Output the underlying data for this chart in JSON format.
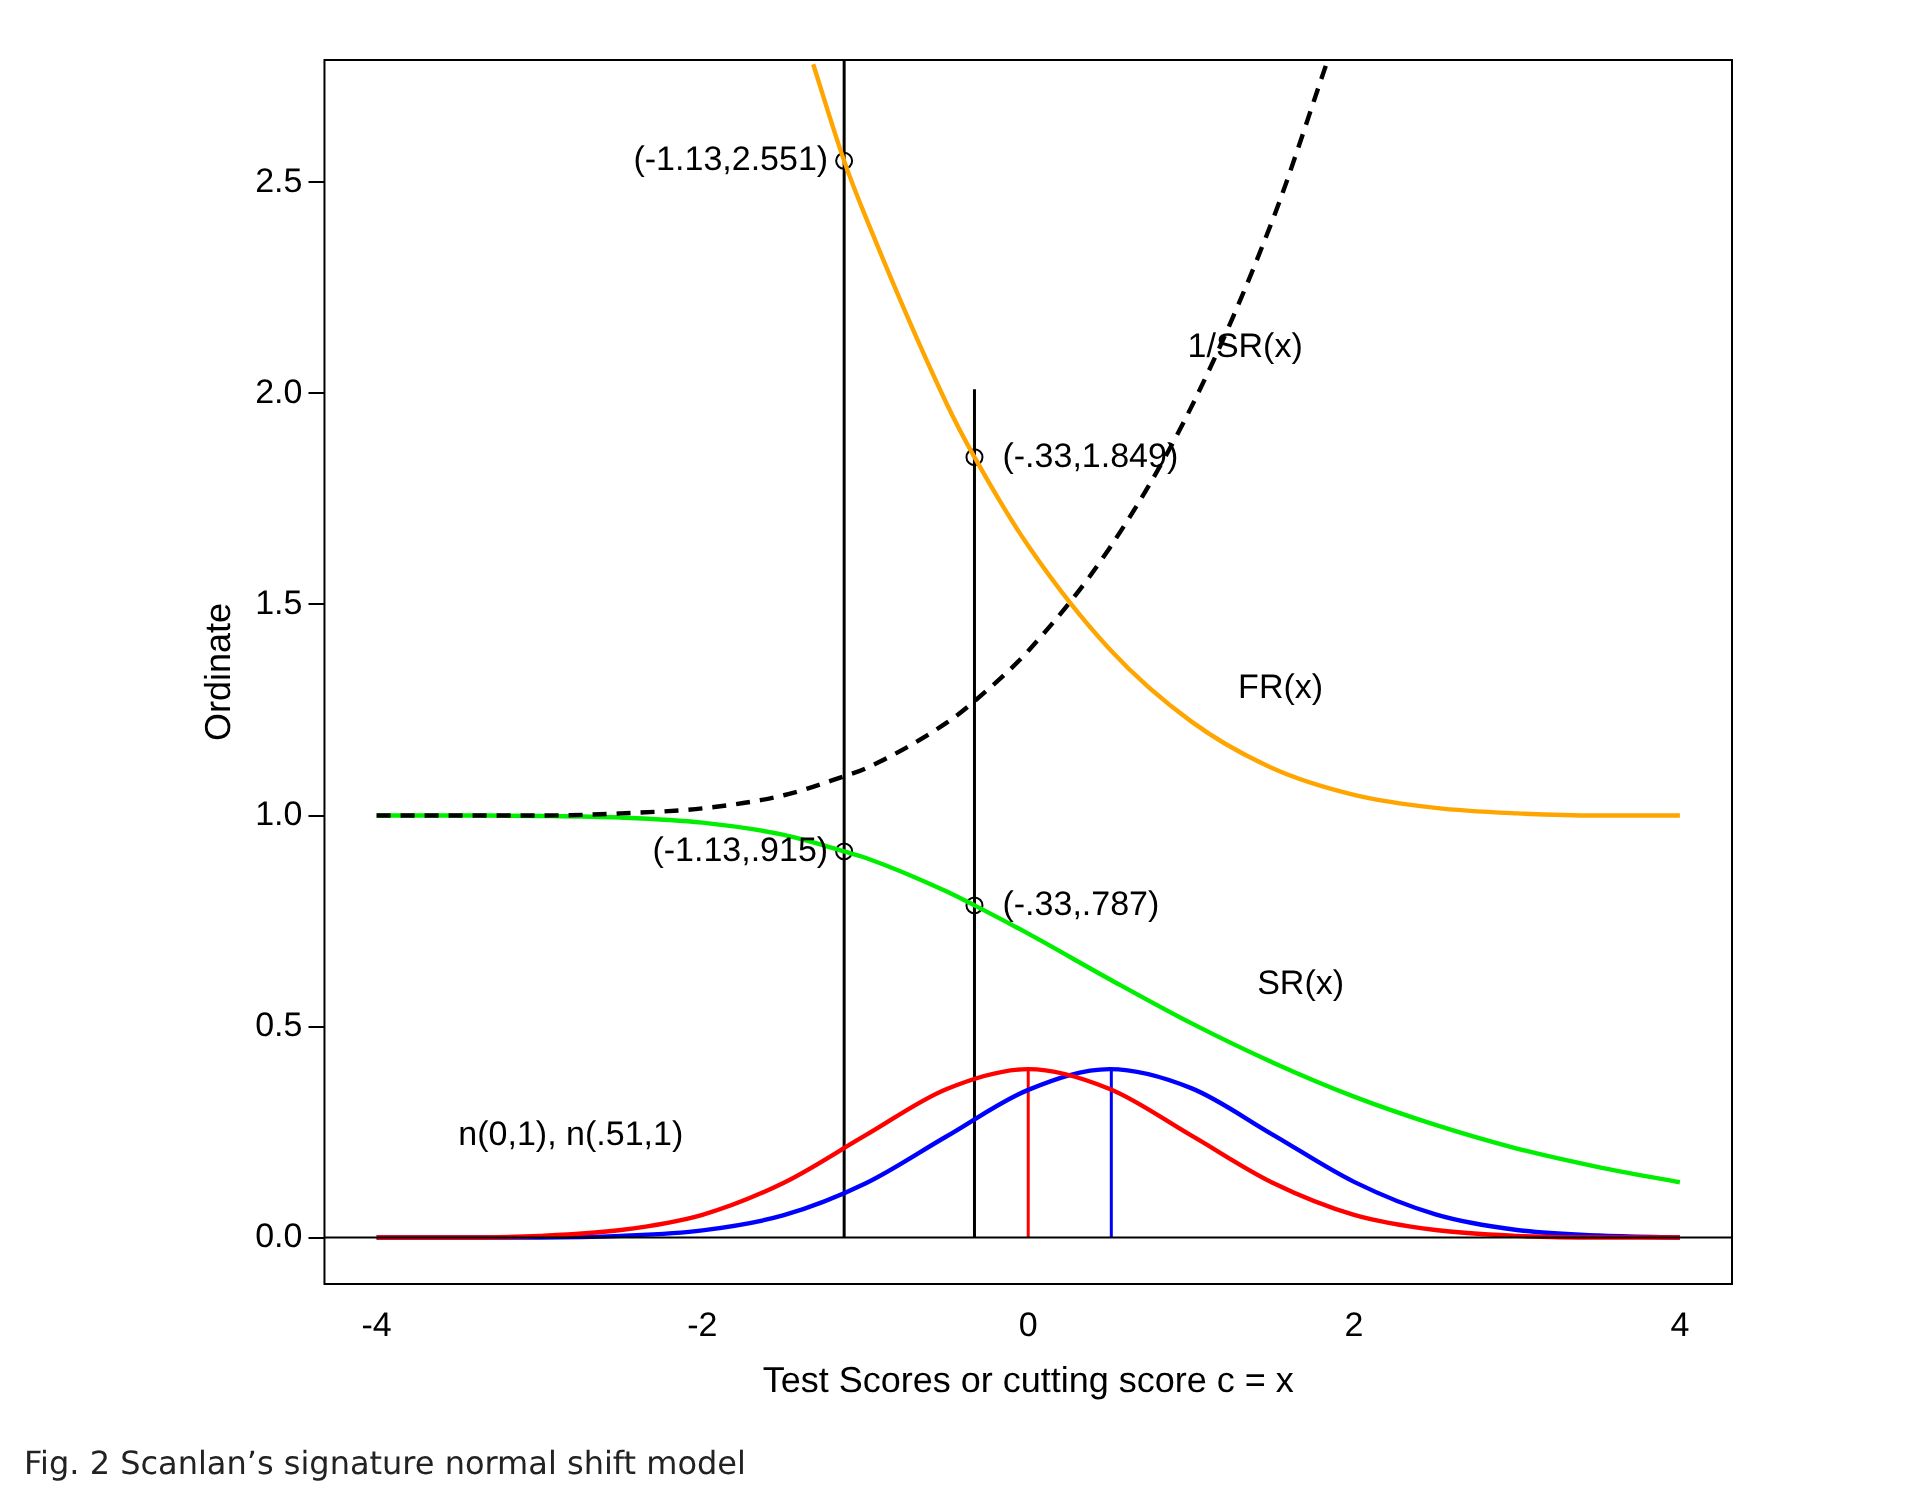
{
  "chart_data": {
    "type": "line",
    "xlabel": "Test Scores or cutting score c = x",
    "ylabel": "Ordinate",
    "xlim": [
      -4.32,
      4.32
    ],
    "ylim": [
      -0.11,
      2.79
    ],
    "xticks": [
      -4,
      -2,
      0,
      2,
      4
    ],
    "yticks": [
      {
        "value": 0,
        "label": "0.0"
      },
      {
        "value": 0.5,
        "label": "0.5"
      },
      {
        "value": 1,
        "label": "1.0"
      },
      {
        "value": 1.5,
        "label": "1.5"
      },
      {
        "value": 2,
        "label": "2.0"
      },
      {
        "value": 2.5,
        "label": "2.5"
      }
    ],
    "grid": false,
    "legend": false,
    "ref_lines": [
      {
        "axis": "y",
        "value": 0,
        "color": "#000000"
      }
    ],
    "series": [
      {
        "color": "#ffa500",
        "marker": "none",
        "x": [
          -1.32,
          -1.13,
          -1,
          -0.5,
          -0.33,
          0,
          0.5,
          1,
          1.5,
          2,
          2.5,
          3,
          3.5,
          4
        ],
        "values": [
          2.78,
          2.551,
          2.42,
          1.975,
          1.849,
          1.639,
          1.394,
          1.223,
          1.112,
          1.049,
          1.018,
          1.005,
          1.0,
          1.0
        ]
      },
      {
        "color": "#000000",
        "marker": "none",
        "line_style": "dashed",
        "x": [
          -4,
          -3.5,
          -3,
          -2.5,
          -2,
          -1.5,
          -1.13,
          -1,
          -0.5,
          -0.33,
          0,
          0.5,
          1,
          1.5,
          1.83
        ],
        "values": [
          1.0,
          1.0,
          1.0,
          1.005,
          1.017,
          1.048,
          1.093,
          1.111,
          1.22,
          1.271,
          1.39,
          1.634,
          1.967,
          2.411,
          2.78
        ]
      },
      {
        "color": "#00ee00",
        "marker": "none",
        "x": [
          -4,
          -3.5,
          -3,
          -2.5,
          -2,
          -1.5,
          -1.13,
          -1,
          -0.5,
          -0.33,
          0,
          0.5,
          1,
          1.5,
          2,
          2.5,
          3,
          3.5,
          4
        ],
        "values": [
          1.0,
          1.0,
          0.999,
          0.995,
          0.983,
          0.954,
          0.915,
          0.9,
          0.82,
          0.787,
          0.72,
          0.612,
          0.508,
          0.415,
          0.334,
          0.267,
          0.211,
          0.167,
          0.131
        ]
      },
      {
        "color": "#ff0000",
        "marker": "none",
        "x": [
          -4,
          -3.5,
          -3,
          -2.5,
          -2,
          -1.5,
          -1,
          -0.5,
          0,
          0.5,
          1,
          1.5,
          2,
          2.5,
          3,
          3.5,
          4
        ],
        "values": [
          0,
          0,
          0.004,
          0.018,
          0.054,
          0.13,
          0.242,
          0.352,
          0.399,
          0.352,
          0.242,
          0.13,
          0.054,
          0.018,
          0.004,
          0,
          0
        ]
      },
      {
        "color": "#0000ff",
        "marker": "none",
        "x": [
          -4,
          -3.5,
          -3,
          -2.5,
          -2,
          -1.5,
          -1,
          -0.5,
          0,
          0.5,
          1,
          1.5,
          2,
          2.5,
          3,
          3.5,
          4
        ],
        "values": [
          0,
          0,
          0,
          0.004,
          0.017,
          0.053,
          0.128,
          0.24,
          0.35,
          0.399,
          0.354,
          0.244,
          0.132,
          0.055,
          0.018,
          0.005,
          0
        ]
      },
      {
        "color": "#ff0000",
        "marker": "none",
        "x": [
          0,
          0
        ],
        "values": [
          0,
          0.399
        ]
      },
      {
        "color": "#0000ff",
        "marker": "none",
        "x": [
          0.51,
          0.51
        ],
        "values": [
          0,
          0.399
        ]
      },
      {
        "color": "#000000",
        "marker": "none",
        "x": [
          -1.13,
          -1.13
        ],
        "values": [
          0,
          2.79
        ]
      },
      {
        "color": "#000000",
        "marker": "none",
        "x": [
          -0.33,
          -0.33
        ],
        "values": [
          0,
          2.01
        ]
      },
      {
        "type": "scatter",
        "color": "#000000",
        "marker": "circle",
        "x": [
          -1.13,
          -1.13,
          -0.33,
          -0.33
        ],
        "values": [
          2.551,
          0.915,
          1.849,
          0.787
        ]
      }
    ],
    "annotations": [
      {
        "text": "(-1.13,2.551)",
        "x": -1.13,
        "y": 2.551
      },
      {
        "text": "(-.33,1.849)",
        "x": -0.33,
        "y": 1.849
      },
      {
        "text": "(-1.13,.915)",
        "x": -1.13,
        "y": 0.915
      },
      {
        "text": "(-.33,.787)",
        "x": -0.33,
        "y": 0.787
      },
      {
        "text": "1/SR(x)",
        "x": 1,
        "y": 1.967
      },
      {
        "text": "FR(x)",
        "x": 1.5,
        "y": 1.112
      },
      {
        "text": "SR(x)",
        "x": 1.5,
        "y": 0.415
      },
      "n(0,1), n(.51,1)",
      "Fig. 2 Scanlan’s signature normal shift model"
    ]
  }
}
